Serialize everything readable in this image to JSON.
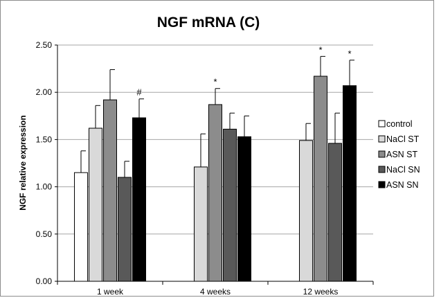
{
  "chart_data": {
    "type": "bar",
    "title": "NGF mRNA (C)",
    "ylabel": "NGF relative expression",
    "xlabel": "",
    "ylim": [
      0,
      2.5
    ],
    "yticks": [
      "0.00",
      "0.50",
      "1.00",
      "1.50",
      "2.00",
      "2.50"
    ],
    "grid": true,
    "legend_position": "right",
    "categories": [
      "1 week",
      "4 weeks",
      "12 weeks"
    ],
    "series": [
      {
        "name": "control",
        "color": "#ffffff",
        "values": [
          1.15,
          null,
          null
        ],
        "errors": [
          0.23,
          null,
          null
        ],
        "annotations": [
          "",
          "",
          ""
        ]
      },
      {
        "name": "NaCl ST",
        "color": "#d9d9d9",
        "values": [
          1.62,
          1.21,
          1.49
        ],
        "errors": [
          0.24,
          0.35,
          0.18
        ],
        "annotations": [
          "",
          "",
          ""
        ]
      },
      {
        "name": "ASN ST",
        "color": "#8c8c8c",
        "values": [
          1.92,
          1.87,
          2.17
        ],
        "errors": [
          0.32,
          0.17,
          0.21
        ],
        "annotations": [
          "",
          "*",
          "*"
        ]
      },
      {
        "name": "NaCl SN",
        "color": "#595959",
        "values": [
          1.1,
          1.61,
          1.46
        ],
        "errors": [
          0.17,
          0.17,
          0.32
        ],
        "annotations": [
          "",
          "",
          ""
        ]
      },
      {
        "name": "ASN SN",
        "color": "#000000",
        "values": [
          1.73,
          1.53,
          2.07
        ],
        "errors": [
          0.2,
          0.22,
          0.27
        ],
        "annotations": [
          "#",
          "",
          "*"
        ]
      }
    ]
  }
}
